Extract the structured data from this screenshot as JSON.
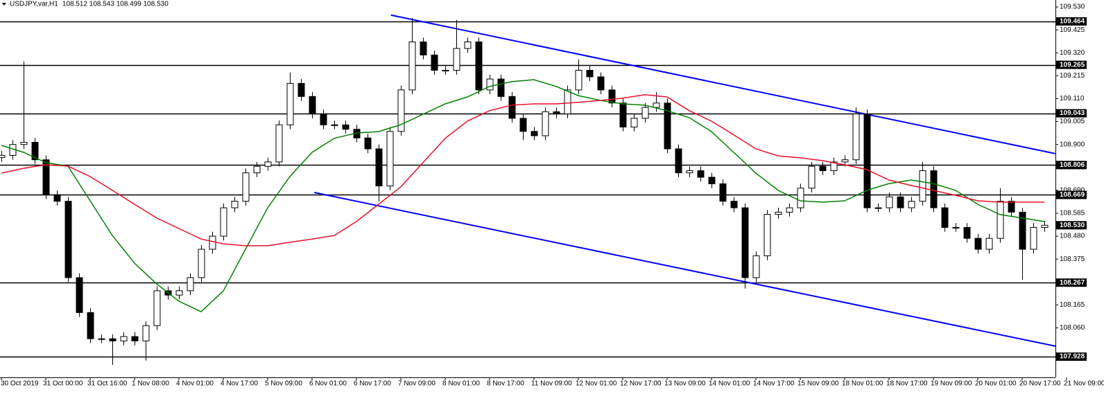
{
  "chart_data": {
    "type": "candlestick",
    "symbol": "USDJPY,var,H1",
    "header_prices": "108.512 108.543 108.499 108.530",
    "xlim": [
      -0.125,
      95
    ],
    "ylim": [
      107.833,
      109.562
    ],
    "xticks": [
      {
        "value": 0,
        "label": "30 Oct 2019"
      },
      {
        "value": 4,
        "label": "31 Oct 00:00"
      },
      {
        "value": 8,
        "label": "31 Oct 16:00"
      },
      {
        "value": 12,
        "label": "1 Nov 08:00"
      },
      {
        "value": 16,
        "label": "4 Nov 01:00"
      },
      {
        "value": 20,
        "label": "4 Nov 17:00"
      },
      {
        "value": 24,
        "label": "5 Nov 09:00"
      },
      {
        "value": 28,
        "label": "6 Nov 01:00"
      },
      {
        "value": 32,
        "label": "6 Nov 17:00"
      },
      {
        "value": 36,
        "label": "7 Nov 09:00"
      },
      {
        "value": 40,
        "label": "8 Nov 01:00"
      },
      {
        "value": 44,
        "label": "8 Nov 17:00"
      },
      {
        "value": 48,
        "label": "11 Nov 09:00"
      },
      {
        "value": 52,
        "label": "12 Nov 01:00"
      },
      {
        "value": 56,
        "label": "12 Nov 17:00"
      },
      {
        "value": 60,
        "label": "13 Nov 09:00"
      },
      {
        "value": 64,
        "label": "14 Nov 01:00"
      },
      {
        "value": 68,
        "label": "14 Nov 17:00"
      },
      {
        "value": 72,
        "label": "15 Nov 09:00"
      },
      {
        "value": 76,
        "label": "18 Nov 01:00"
      },
      {
        "value": 80,
        "label": "18 Nov 17:00"
      },
      {
        "value": 84,
        "label": "19 Nov 09:00"
      },
      {
        "value": 88,
        "label": "20 Nov 01:00"
      },
      {
        "value": 92,
        "label": "20 Nov 17:00"
      },
      {
        "value": 96,
        "label": "21 Nov 09:00"
      }
    ],
    "yticks": [
      {
        "value": 109.53,
        "label": "109.530"
      },
      109.425,
      {
        "value": 109.32,
        "label": "109.320"
      },
      109.215,
      {
        "value": 109.11,
        "label": "109.110"
      },
      109.005,
      {
        "value": 108.9,
        "label": "108.900"
      },
      108.795,
      {
        "value": 108.69,
        "label": "108.690"
      },
      108.585,
      {
        "value": 108.48,
        "label": "108.480"
      },
      108.375,
      108.165,
      {
        "value": 108.06,
        "label": "108.060"
      }
    ],
    "up_color": "#ffffff",
    "down_color": "#000000",
    "wick_color": "#000000",
    "open": [
      108.84,
      108.85,
      108.9,
      108.91,
      108.83,
      108.67,
      108.64,
      108.29,
      108.13,
      108.01,
      108.01,
      108.0,
      108.02,
      108.0,
      108.07,
      108.23,
      108.21,
      108.23,
      108.29,
      108.42,
      108.48,
      108.61,
      108.64,
      108.77,
      108.8,
      108.82,
      108.99,
      109.18,
      109.12,
      109.04,
      108.99,
      108.99,
      108.97,
      108.93,
      108.88,
      108.71,
      108.96,
      109.15,
      109.37,
      109.31,
      109.24,
      109.24,
      109.34,
      109.37,
      109.15,
      109.2,
      109.12,
      109.02,
      108.96,
      108.94,
      109.05,
      109.04,
      109.15,
      109.24,
      109.21,
      109.15,
      109.09,
      108.98,
      109.02,
      109.07,
      109.09,
      108.88,
      108.77,
      108.78,
      108.75,
      108.72,
      108.64,
      108.61,
      108.29,
      108.39,
      108.58,
      108.59,
      108.61,
      108.7,
      108.8,
      108.78,
      108.82,
      108.83,
      109.04,
      108.61,
      108.61,
      108.66,
      108.61,
      108.64,
      108.78,
      108.61,
      108.52,
      108.52,
      108.47,
      108.42,
      108.47,
      108.64,
      108.59,
      108.42,
      108.52
    ],
    "high": [
      108.87,
      108.92,
      109.28,
      108.93,
      108.85,
      108.69,
      108.66,
      108.31,
      108.15,
      108.03,
      108.03,
      108.04,
      108.04,
      108.09,
      108.25,
      108.25,
      108.25,
      108.31,
      108.44,
      108.5,
      108.63,
      108.66,
      108.79,
      108.82,
      108.84,
      109.01,
      109.23,
      109.2,
      109.14,
      109.06,
      109.01,
      109.01,
      108.99,
      108.95,
      108.9,
      108.98,
      109.17,
      109.48,
      109.39,
      109.33,
      109.26,
      109.47,
      109.39,
      109.39,
      109.22,
      109.22,
      109.14,
      109.04,
      108.98,
      109.07,
      109.07,
      109.17,
      109.29,
      109.26,
      109.23,
      109.17,
      109.11,
      109.04,
      109.09,
      109.14,
      109.11,
      108.9,
      108.8,
      108.8,
      108.77,
      108.74,
      108.66,
      108.63,
      108.41,
      108.6,
      108.61,
      108.63,
      108.72,
      108.82,
      108.82,
      108.84,
      108.85,
      109.07,
      109.06,
      108.63,
      108.68,
      108.68,
      108.66,
      108.82,
      108.8,
      108.63,
      108.54,
      108.54,
      108.49,
      108.49,
      108.7,
      108.66,
      108.61,
      108.54,
      108.55
    ],
    "low": [
      108.82,
      108.83,
      108.88,
      108.81,
      108.65,
      108.62,
      108.27,
      108.11,
      107.99,
      107.99,
      107.89,
      107.98,
      107.98,
      107.91,
      108.05,
      108.19,
      108.19,
      108.21,
      108.27,
      108.4,
      108.46,
      108.59,
      108.62,
      108.75,
      108.78,
      108.8,
      108.97,
      109.1,
      109.02,
      108.97,
      108.97,
      108.95,
      108.91,
      108.86,
      108.64,
      108.69,
      108.94,
      109.13,
      109.29,
      109.22,
      109.22,
      109.22,
      109.32,
      109.13,
      109.13,
      109.1,
      109.0,
      108.92,
      108.92,
      108.92,
      109.02,
      109.02,
      109.13,
      109.19,
      109.13,
      109.07,
      108.96,
      108.96,
      109.0,
      109.05,
      108.86,
      108.75,
      108.75,
      108.73,
      108.7,
      108.62,
      108.59,
      108.24,
      108.27,
      108.37,
      108.56,
      108.57,
      108.59,
      108.68,
      108.76,
      108.76,
      108.8,
      108.81,
      108.59,
      108.59,
      108.59,
      108.59,
      108.59,
      108.62,
      108.59,
      108.5,
      108.5,
      108.45,
      108.4,
      108.4,
      108.45,
      108.57,
      108.28,
      108.4,
      108.5
    ],
    "close": [
      108.85,
      108.9,
      108.91,
      108.83,
      108.67,
      108.64,
      108.29,
      108.13,
      108.01,
      108.01,
      108.0,
      108.02,
      108.0,
      108.07,
      108.23,
      108.21,
      108.23,
      108.29,
      108.42,
      108.48,
      108.61,
      108.64,
      108.77,
      108.8,
      108.82,
      108.99,
      109.18,
      109.12,
      109.04,
      108.99,
      108.99,
      108.97,
      108.93,
      108.88,
      108.71,
      108.96,
      109.15,
      109.37,
      109.31,
      109.24,
      109.24,
      109.34,
      109.37,
      109.15,
      109.2,
      109.12,
      109.02,
      108.96,
      108.94,
      109.05,
      109.04,
      109.15,
      109.24,
      109.21,
      109.15,
      109.09,
      108.98,
      109.02,
      109.07,
      109.09,
      108.88,
      108.77,
      108.78,
      108.75,
      108.72,
      108.64,
      108.61,
      108.29,
      108.39,
      108.58,
      108.59,
      108.61,
      108.7,
      108.8,
      108.78,
      108.82,
      108.83,
      109.04,
      108.61,
      108.61,
      108.66,
      108.61,
      108.64,
      108.78,
      108.61,
      108.52,
      108.52,
      108.47,
      108.42,
      108.47,
      108.64,
      108.59,
      108.42,
      108.52,
      108.53
    ],
    "series": [
      {
        "color": "#008000",
        "x": [
          0,
          2,
          4,
          6,
          8,
          10,
          12,
          14,
          16,
          18,
          20,
          22,
          24,
          26,
          28,
          30,
          32,
          34,
          36,
          38,
          40,
          42,
          44,
          46,
          48,
          50,
          52,
          54,
          56,
          58,
          60,
          62,
          64,
          66,
          68,
          70,
          72,
          74,
          76,
          78,
          80,
          82,
          84,
          86,
          88,
          90,
          92,
          94
        ],
        "values": [
          108.896,
          108.864,
          108.817,
          108.801,
          108.642,
          108.483,
          108.356,
          108.261,
          108.182,
          108.134,
          108.229,
          108.42,
          108.61,
          108.753,
          108.864,
          108.928,
          108.953,
          108.959,
          108.991,
          109.039,
          109.086,
          109.118,
          109.166,
          109.188,
          109.197,
          109.166,
          109.124,
          109.102,
          109.086,
          109.08,
          109.055,
          109.023,
          108.959,
          108.864,
          108.769,
          108.69,
          108.642,
          108.636,
          108.642,
          108.69,
          108.721,
          108.737,
          108.721,
          108.69,
          108.626,
          108.579,
          108.563,
          108.547
        ]
      },
      {
        "color": "#e8102a",
        "x": [
          0,
          2,
          4,
          6,
          8,
          10,
          12,
          14,
          16,
          18,
          20,
          22,
          24,
          26,
          28,
          30,
          32,
          34,
          36,
          38,
          40,
          42,
          44,
          46,
          48,
          50,
          52,
          54,
          56,
          58,
          60,
          62,
          64,
          66,
          68,
          70,
          72,
          74,
          76,
          78,
          80,
          82,
          84,
          86,
          88,
          90,
          92,
          94
        ],
        "values": [
          108.769,
          108.791,
          108.807,
          108.801,
          108.753,
          108.69,
          108.626,
          108.563,
          108.515,
          108.467,
          108.445,
          108.436,
          108.436,
          108.452,
          108.467,
          108.483,
          108.547,
          108.626,
          108.706,
          108.817,
          108.928,
          109.007,
          109.055,
          109.08,
          109.086,
          109.086,
          109.093,
          109.102,
          109.112,
          109.128,
          109.118,
          109.055,
          109.007,
          108.944,
          108.88,
          108.848,
          108.839,
          108.826,
          108.807,
          108.785,
          108.737,
          108.712,
          108.69,
          108.667,
          108.642,
          108.636,
          108.636,
          108.636
        ]
      }
    ],
    "trendline_color": "#0000ff",
    "trendlines": [
      {
        "x": [
          35.1,
          95
        ],
        "values": [
          109.493,
          108.858
        ]
      },
      {
        "x": [
          28.2,
          95
        ],
        "values": [
          108.68,
          107.976
        ]
      }
    ],
    "level_color": "#000000",
    "levels": [
      109.464,
      109.265,
      109.043,
      108.806,
      108.669,
      108.267,
      107.928
    ],
    "current_price": {
      "value": 108.53,
      "label": "108.530"
    }
  }
}
